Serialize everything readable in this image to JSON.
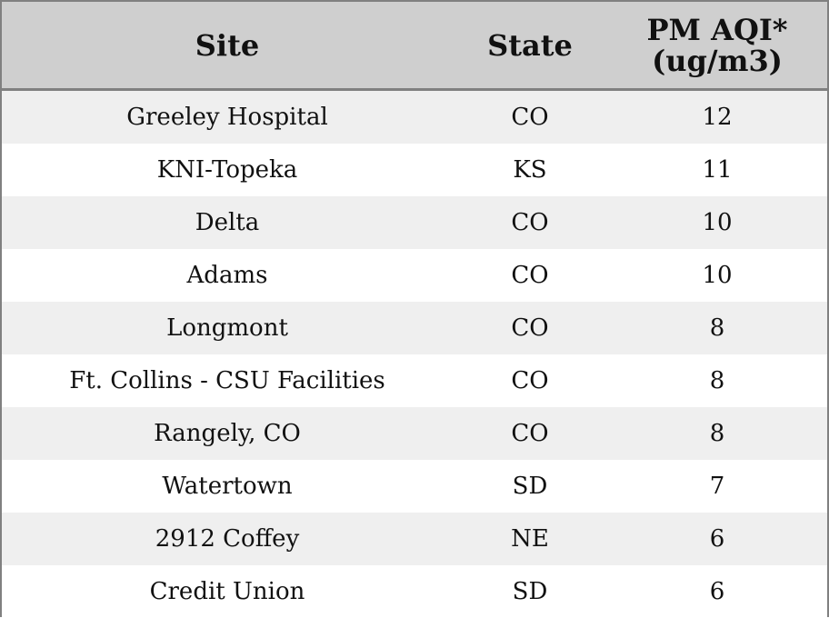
{
  "table": {
    "headers": {
      "site": "Site",
      "state": "State",
      "aqi": "PM AQI*\n(ug/m3)"
    },
    "rows": [
      {
        "site": "Greeley Hospital",
        "state": "CO",
        "aqi": "12"
      },
      {
        "site": "KNI-Topeka",
        "state": "KS",
        "aqi": "11"
      },
      {
        "site": "Delta",
        "state": "CO",
        "aqi": "10"
      },
      {
        "site": "Adams",
        "state": "CO",
        "aqi": "10"
      },
      {
        "site": "Longmont",
        "state": "CO",
        "aqi": "8"
      },
      {
        "site": "Ft. Collins - CSU Facilities",
        "state": "CO",
        "aqi": "8"
      },
      {
        "site": "Rangely, CO",
        "state": "CO",
        "aqi": "8"
      },
      {
        "site": "Watertown",
        "state": "SD",
        "aqi": "7"
      },
      {
        "site": "2912 Coffey",
        "state": "NE",
        "aqi": "6"
      },
      {
        "site": "Credit Union",
        "state": "SD",
        "aqi": "6"
      }
    ]
  },
  "colors": {
    "header_bg": "#cfcfcf",
    "row_alt_bg": "#efefef",
    "row_bg": "#ffffff",
    "border": "#808080"
  }
}
